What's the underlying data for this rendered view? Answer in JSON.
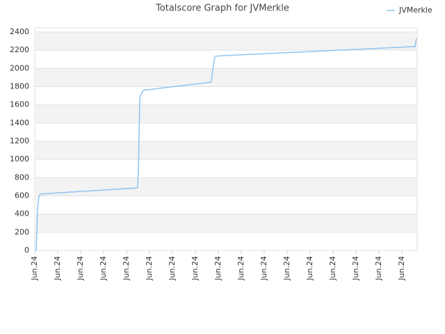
{
  "chart_data": {
    "type": "line",
    "title": "Totalscore Graph for JVMerkle",
    "x": [
      0.06,
      0.09,
      0.12,
      0.18,
      0.24,
      4.48,
      4.52,
      4.55,
      4.58,
      4.73,
      7.7,
      7.76,
      7.85,
      8.18,
      16.58,
      16.64
    ],
    "series": [
      {
        "name": "JVMerkle",
        "color": "#8ec3ee",
        "values": [
          0,
          230,
          460,
          590,
          620,
          688,
          917,
          1300,
          1682,
          1760,
          1850,
          1988,
          2133,
          2140,
          2240,
          2332
        ]
      }
    ],
    "xlim": [
      0,
      16.67
    ],
    "xticks": [
      {
        "value": 0,
        "label": "Jun.24"
      },
      {
        "value": 1,
        "label": "Jun.24"
      },
      {
        "value": 2,
        "label": "Jun.24"
      },
      {
        "value": 3,
        "label": "Jun.24"
      },
      {
        "value": 4,
        "label": "Jun.24"
      },
      {
        "value": 5,
        "label": "Jun.24"
      },
      {
        "value": 6,
        "label": "Jun.24"
      },
      {
        "value": 7,
        "label": "Jun.24"
      },
      {
        "value": 8,
        "label": "Jun.24"
      },
      {
        "value": 9,
        "label": "Jun.24"
      },
      {
        "value": 10,
        "label": "Jun.24"
      },
      {
        "value": 11,
        "label": "Jun.24"
      },
      {
        "value": 12,
        "label": "Jun.24"
      },
      {
        "value": 13,
        "label": "Jun.24"
      },
      {
        "value": 14,
        "label": "Jun.24"
      },
      {
        "value": 15,
        "label": "Jun.24"
      },
      {
        "value": 16,
        "label": "Jun.24"
      }
    ],
    "ylim": [
      0,
      2400
    ],
    "yticks": [
      0,
      200,
      400,
      600,
      800,
      1000,
      1200,
      1400,
      1600,
      1800,
      2000,
      2200,
      2400
    ],
    "grid": true,
    "legend": "top-right"
  }
}
